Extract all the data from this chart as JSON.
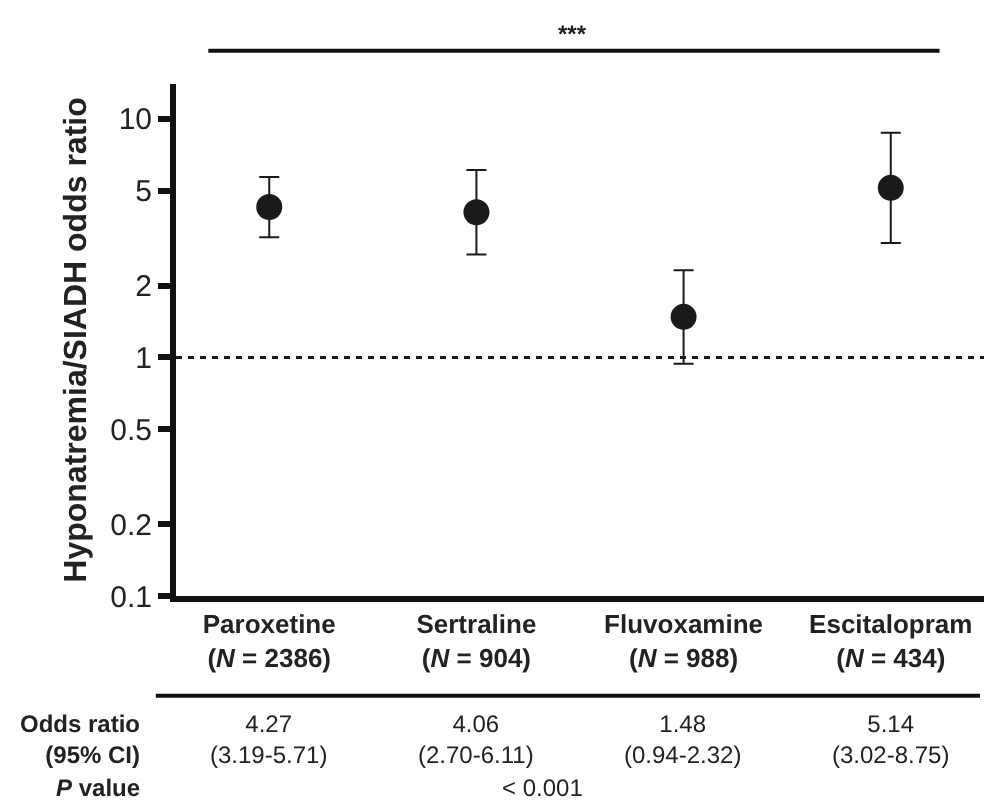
{
  "chart_data": {
    "type": "scatter",
    "ylabel": "Hyponatremia/SIADH odds ratio",
    "categories": [
      "Paroxetine\n(N = 2386)",
      "Sertraline\n(N = 904)",
      "Fluvoxamine\n(N = 988)",
      "Escitalopram\n(N = 434)"
    ],
    "series": [
      {
        "color": "#1a1a1a",
        "values": [
          4.27,
          4.06,
          1.48,
          5.14
        ],
        "errors": [
          [
            3.19,
            5.71
          ],
          [
            2.7,
            6.11
          ],
          [
            0.94,
            2.32
          ],
          [
            3.02,
            8.75
          ]
        ],
        "value_labels": [
          "4.27\n(3.19-5.71)",
          "4.06\n(2.70-6.11)",
          "1.48\n(0.94-2.32)",
          "5.14\n(3.02-8.75)"
        ]
      }
    ],
    "log": "y",
    "ylim": [
      0.1,
      14
    ],
    "yticks": [
      0.1,
      0.2,
      0.5,
      1,
      2,
      5,
      10
    ],
    "ref_lines": [
      {
        "axis": "y",
        "value": 1,
        "line_style": "dotted",
        "color": "#1a1a1a"
      }
    ],
    "annotations": [
      "***",
      "Odds ratio\n(95% CI)",
      "P value",
      "< 0.001"
    ],
    "marker": "circle"
  }
}
